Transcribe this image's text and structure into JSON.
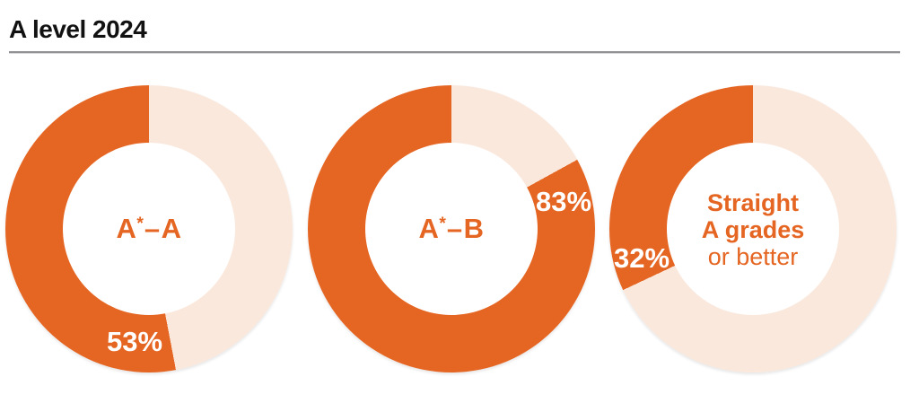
{
  "header": {
    "title": "A level 2024"
  },
  "chart_data": {
    "type": "pie",
    "subtype": "donut-set",
    "title": "A level 2024",
    "unit": "%",
    "direction": "filled slice starts at 12 o'clock and sweeps counterclockwise",
    "palette": {
      "filled": "#e56522",
      "remainder": "#fae8dc",
      "value_label_text": "#ffffff",
      "center_label_text": "#e56522",
      "title_text": "#121212",
      "divider": "#929296"
    },
    "donuts": [
      {
        "name": "A*-A",
        "value": 53,
        "remainder": 47,
        "value_label": "53%",
        "center": {
          "grade_from": "A",
          "star": "*",
          "separator": "–",
          "grade_to": "A"
        }
      },
      {
        "name": "A*-B",
        "value": 83,
        "remainder": 17,
        "value_label": "83%",
        "center": {
          "grade_from": "A",
          "star": "*",
          "separator": "–",
          "grade_to": "B"
        }
      },
      {
        "name": "Straight A grades or better",
        "value": 32,
        "remainder": 68,
        "value_label": "32%",
        "center_lines_bold": [
          "Straight",
          "A grades"
        ],
        "center_line_regular": "or better"
      }
    ]
  }
}
